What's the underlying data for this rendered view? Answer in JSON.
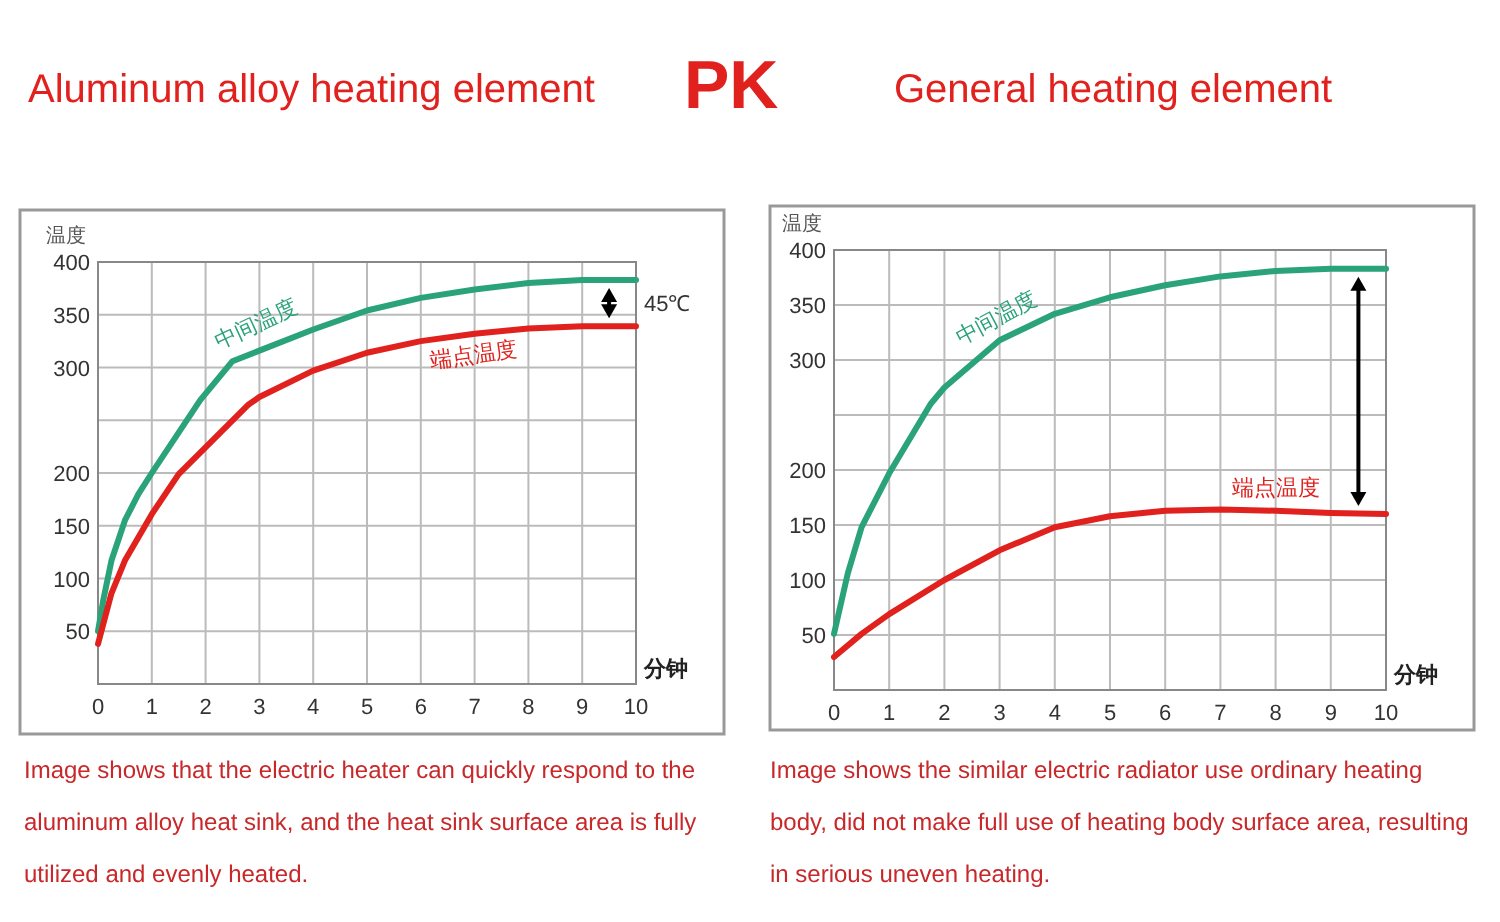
{
  "chart_data": [
    {
      "type": "line",
      "title": "Aluminum alloy heating element",
      "xlabel": "分钟",
      "ylabel": "温度",
      "xlim": [
        0,
        10
      ],
      "ylim": [
        0,
        400
      ],
      "xticks": [
        0,
        1,
        2,
        3,
        4,
        5,
        6,
        7,
        8,
        9,
        10
      ],
      "yticks": [
        50,
        100,
        150,
        200,
        {
          "value": 250,
          "label": null
        },
        300,
        350,
        400
      ],
      "grid": true,
      "marker": "none",
      "line_style": "solid",
      "series": [
        {
          "name": "中间温度",
          "color": "#2aa37a",
          "x": [
            0,
            0.1,
            0.25,
            0.5,
            0.75,
            1,
            1.9,
            2.5,
            3,
            4,
            5,
            6,
            7,
            8,
            9,
            10
          ],
          "values": [
            50,
            80,
            117,
            155,
            180,
            200,
            269,
            306,
            316,
            336,
            354,
            366,
            374,
            380,
            383,
            383
          ]
        },
        {
          "name": "端点温度",
          "color": "#e0211d",
          "x": [
            0,
            0.25,
            0.5,
            1,
            1.5,
            2.8,
            3,
            4,
            5,
            6,
            7,
            8,
            9,
            10
          ],
          "values": [
            38,
            86,
            117,
            161,
            199,
            265,
            272,
            297,
            314,
            325,
            332,
            337,
            339,
            339
          ]
        }
      ],
      "annotations": [
        "PK",
        "45℃",
        "Image shows that the electric heater can quickly respond to the aluminum alloy heat sink, and the heat sink surface area is fully utilized and evenly heated."
      ]
    },
    {
      "type": "line",
      "title": "General heating element",
      "xlabel": "分钟",
      "ylabel": "温度",
      "xlim": [
        0,
        10
      ],
      "ylim": [
        0,
        400
      ],
      "xticks": [
        0,
        1,
        2,
        3,
        4,
        5,
        6,
        7,
        8,
        9,
        10
      ],
      "yticks": [
        50,
        100,
        150,
        200,
        {
          "value": 250,
          "label": null
        },
        300,
        350,
        400
      ],
      "grid": true,
      "marker": "none",
      "line_style": "solid",
      "series": [
        {
          "name": "中间温度",
          "color": "#2aa37a",
          "x": [
            0,
            0.25,
            0.5,
            1,
            1.75,
            2,
            3,
            4,
            5,
            6,
            7,
            8,
            9,
            10
          ],
          "values": [
            51,
            106,
            148,
            197,
            260,
            275,
            318,
            342,
            357,
            368,
            376,
            381,
            383,
            383
          ]
        },
        {
          "name": "端点温度",
          "color": "#e0211d",
          "x": [
            0,
            0.5,
            1,
            2,
            3,
            4,
            5,
            6,
            7,
            8,
            9,
            10
          ],
          "values": [
            30,
            51,
            69,
            100,
            127,
            148,
            158,
            163,
            164,
            163,
            161,
            160
          ]
        }
      ],
      "annotations": [
        "Image shows the similar electric radiator use ordinary heating body, did not make full use of heating body surface area, resulting in serious uneven heating."
      ]
    }
  ]
}
